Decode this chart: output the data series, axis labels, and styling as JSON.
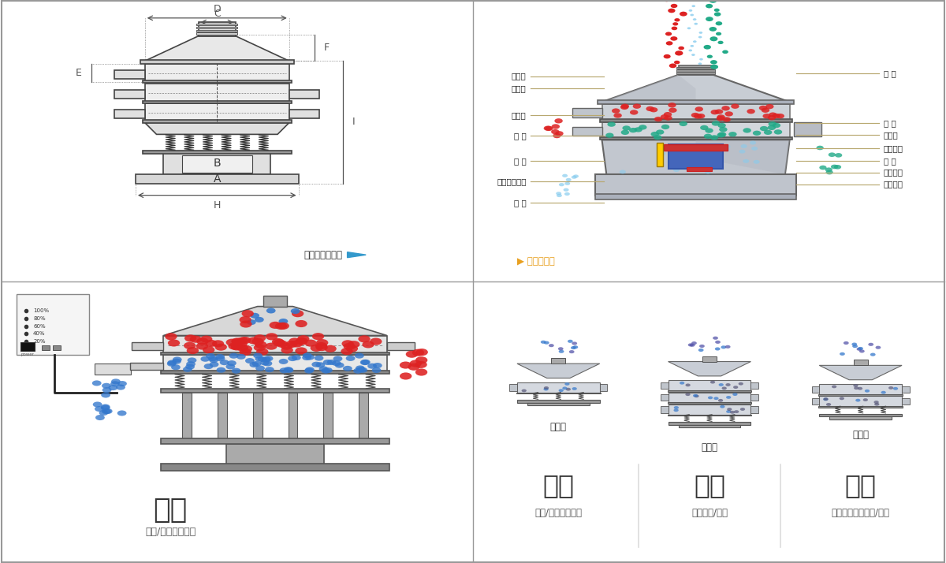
{
  "bg_color": "#ffffff",
  "border_color": "#cccccc",
  "structure_labels_left": [
    "進料口",
    "防塵蓋",
    "出料口",
    "束 環",
    "彈 簧",
    "運輸固定螺栓",
    "機 座"
  ],
  "structure_labels_right": [
    "篩 網",
    "網 架",
    "加重塊",
    "上部重錘",
    "篩 盤",
    "振動電機",
    "下部重錘"
  ],
  "bottom_left_text1": "分級",
  "bottom_left_text2": "顆粒/粉末準確分級",
  "bottom_mid_text1": "過濾",
  "bottom_mid_text2": "去除異物/結塊",
  "bottom_right_text1": "除雜",
  "bottom_right_text2": "去除液體中的顆粒/異物",
  "single_layer": "單層式",
  "three_layer": "三層式",
  "double_layer": "雙層式",
  "label_outline": "外形尺寸示意圖",
  "label_structure": "結構示意圖",
  "red_color": "#dd2222",
  "blue_color": "#3377cc",
  "teal_color": "#22aa88",
  "light_blue": "#88ccee",
  "machine_gray": "#b0b8c0",
  "line_color": "#555555",
  "ann_color": "#b8a870",
  "dim_color": "#555555",
  "arrow_blue": "#3399cc",
  "arrow_yellow": "#e8a020"
}
